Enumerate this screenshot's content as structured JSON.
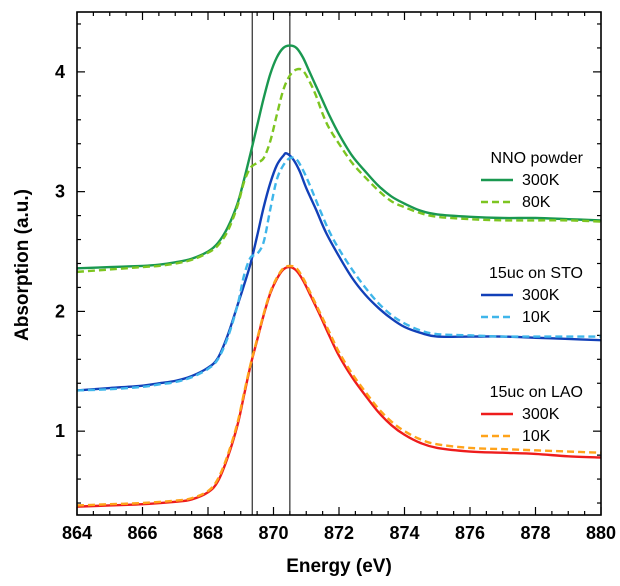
{
  "chart_data": {
    "type": "line",
    "xlabel": "Energy (eV)",
    "ylabel": "Absorption (a.u.)",
    "xlim": [
      864,
      880
    ],
    "ylim": [
      0.3,
      4.5
    ],
    "x_ticks": [
      864,
      866,
      868,
      870,
      872,
      874,
      876,
      878,
      880
    ],
    "y_ticks": [
      1,
      2,
      3,
      4
    ],
    "grid": false,
    "vertical_lines": [
      869.35,
      870.5
    ],
    "groups": [
      {
        "title": "NNO powder",
        "series": [
          {
            "name": "300K",
            "color": "#1a9850",
            "dash": "solid",
            "points": [
              [
                864,
                2.36
              ],
              [
                865,
                2.37
              ],
              [
                866,
                2.38
              ],
              [
                866.5,
                2.39
              ],
              [
                867,
                2.41
              ],
              [
                867.5,
                2.44
              ],
              [
                868,
                2.5
              ],
              [
                868.3,
                2.57
              ],
              [
                868.6,
                2.7
              ],
              [
                868.9,
                2.9
              ],
              [
                869.1,
                3.1
              ],
              [
                869.3,
                3.32
              ],
              [
                869.5,
                3.55
              ],
              [
                869.7,
                3.78
              ],
              [
                869.9,
                3.98
              ],
              [
                870.1,
                4.12
              ],
              [
                870.3,
                4.2
              ],
              [
                870.5,
                4.22
              ],
              [
                870.7,
                4.2
              ],
              [
                870.9,
                4.12
              ],
              [
                871.1,
                4.0
              ],
              [
                871.3,
                3.88
              ],
              [
                871.5,
                3.76
              ],
              [
                871.7,
                3.64
              ],
              [
                872,
                3.48
              ],
              [
                872.4,
                3.3
              ],
              [
                872.8,
                3.17
              ],
              [
                873.2,
                3.05
              ],
              [
                873.6,
                2.96
              ],
              [
                874,
                2.9
              ],
              [
                874.5,
                2.84
              ],
              [
                875,
                2.81
              ],
              [
                876,
                2.79
              ],
              [
                877,
                2.78
              ],
              [
                878,
                2.78
              ],
              [
                879,
                2.77
              ],
              [
                880,
                2.76
              ]
            ]
          },
          {
            "name": "80K",
            "color": "#7dc520",
            "dash": "dashed",
            "points": [
              [
                864,
                2.33
              ],
              [
                865,
                2.35
              ],
              [
                866,
                2.37
              ],
              [
                866.5,
                2.38
              ],
              [
                867,
                2.4
              ],
              [
                867.5,
                2.43
              ],
              [
                868,
                2.49
              ],
              [
                868.3,
                2.55
              ],
              [
                868.6,
                2.67
              ],
              [
                868.9,
                2.88
              ],
              [
                869.1,
                3.08
              ],
              [
                869.3,
                3.2
              ],
              [
                869.5,
                3.24
              ],
              [
                869.7,
                3.28
              ],
              [
                869.9,
                3.42
              ],
              [
                870.1,
                3.64
              ],
              [
                870.3,
                3.85
              ],
              [
                870.5,
                3.97
              ],
              [
                870.7,
                4.02
              ],
              [
                870.9,
                4.01
              ],
              [
                871.1,
                3.92
              ],
              [
                871.3,
                3.8
              ],
              [
                871.5,
                3.65
              ],
              [
                871.7,
                3.53
              ],
              [
                872,
                3.4
              ],
              [
                872.4,
                3.24
              ],
              [
                872.8,
                3.12
              ],
              [
                873.2,
                3.01
              ],
              [
                873.6,
                2.92
              ],
              [
                874,
                2.87
              ],
              [
                874.5,
                2.82
              ],
              [
                875,
                2.79
              ],
              [
                876,
                2.77
              ],
              [
                877,
                2.76
              ],
              [
                878,
                2.76
              ],
              [
                879,
                2.76
              ],
              [
                880,
                2.75
              ]
            ]
          }
        ]
      },
      {
        "title": "15uc on STO",
        "series": [
          {
            "name": "300K",
            "color": "#1240b8",
            "dash": "solid",
            "points": [
              [
                864,
                1.34
              ],
              [
                865,
                1.36
              ],
              [
                866,
                1.38
              ],
              [
                866.5,
                1.4
              ],
              [
                867,
                1.42
              ],
              [
                867.5,
                1.46
              ],
              [
                868,
                1.53
              ],
              [
                868.3,
                1.61
              ],
              [
                868.6,
                1.8
              ],
              [
                868.9,
                2.05
              ],
              [
                869.1,
                2.22
              ],
              [
                869.3,
                2.4
              ],
              [
                869.5,
                2.63
              ],
              [
                869.7,
                2.87
              ],
              [
                869.9,
                3.07
              ],
              [
                870.1,
                3.22
              ],
              [
                870.3,
                3.3
              ],
              [
                870.4,
                3.32
              ],
              [
                870.6,
                3.27
              ],
              [
                870.8,
                3.17
              ],
              [
                871,
                3.03
              ],
              [
                871.3,
                2.85
              ],
              [
                871.6,
                2.66
              ],
              [
                872,
                2.46
              ],
              [
                872.4,
                2.28
              ],
              [
                872.8,
                2.14
              ],
              [
                873.2,
                2.03
              ],
              [
                873.6,
                1.94
              ],
              [
                874,
                1.87
              ],
              [
                874.5,
                1.82
              ],
              [
                875,
                1.79
              ],
              [
                876,
                1.79
              ],
              [
                877,
                1.79
              ],
              [
                878,
                1.78
              ],
              [
                879,
                1.77
              ],
              [
                880,
                1.76
              ]
            ]
          },
          {
            "name": "10K",
            "color": "#3fb6ea",
            "dash": "dashed",
            "points": [
              [
                864,
                1.34
              ],
              [
                865,
                1.35
              ],
              [
                866,
                1.37
              ],
              [
                866.5,
                1.39
              ],
              [
                867,
                1.41
              ],
              [
                867.5,
                1.45
              ],
              [
                868,
                1.52
              ],
              [
                868.3,
                1.6
              ],
              [
                868.6,
                1.78
              ],
              [
                868.9,
                2.05
              ],
              [
                869.1,
                2.3
              ],
              [
                869.3,
                2.45
              ],
              [
                869.5,
                2.48
              ],
              [
                869.7,
                2.58
              ],
              [
                869.9,
                2.85
              ],
              [
                870.1,
                3.1
              ],
              [
                870.3,
                3.22
              ],
              [
                870.5,
                3.28
              ],
              [
                870.7,
                3.27
              ],
              [
                870.9,
                3.18
              ],
              [
                871.1,
                3.06
              ],
              [
                871.4,
                2.86
              ],
              [
                871.7,
                2.67
              ],
              [
                872,
                2.52
              ],
              [
                872.4,
                2.35
              ],
              [
                872.8,
                2.2
              ],
              [
                873.2,
                2.07
              ],
              [
                873.6,
                1.97
              ],
              [
                874,
                1.9
              ],
              [
                874.5,
                1.84
              ],
              [
                875,
                1.81
              ],
              [
                876,
                1.8
              ],
              [
                877,
                1.79
              ],
              [
                878,
                1.79
              ],
              [
                879,
                1.79
              ],
              [
                880,
                1.79
              ]
            ]
          }
        ]
      },
      {
        "title": "15uc on LAO",
        "series": [
          {
            "name": "300K",
            "color": "#ee1c1c",
            "dash": "solid",
            "points": [
              [
                864,
                0.37
              ],
              [
                865,
                0.38
              ],
              [
                866,
                0.39
              ],
              [
                867,
                0.41
              ],
              [
                867.5,
                0.43
              ],
              [
                868,
                0.49
              ],
              [
                868.3,
                0.58
              ],
              [
                868.6,
                0.78
              ],
              [
                868.9,
                1.05
              ],
              [
                869.1,
                1.3
              ],
              [
                869.3,
                1.55
              ],
              [
                869.5,
                1.76
              ],
              [
                869.7,
                1.97
              ],
              [
                869.9,
                2.15
              ],
              [
                870.1,
                2.27
              ],
              [
                870.3,
                2.35
              ],
              [
                870.5,
                2.37
              ],
              [
                870.7,
                2.34
              ],
              [
                870.9,
                2.26
              ],
              [
                871.1,
                2.15
              ],
              [
                871.4,
                1.98
              ],
              [
                871.7,
                1.8
              ],
              [
                872,
                1.63
              ],
              [
                872.4,
                1.45
              ],
              [
                872.8,
                1.3
              ],
              [
                873.2,
                1.16
              ],
              [
                873.6,
                1.05
              ],
              [
                874,
                0.97
              ],
              [
                874.5,
                0.9
              ],
              [
                875,
                0.86
              ],
              [
                876,
                0.83
              ],
              [
                877,
                0.82
              ],
              [
                878,
                0.81
              ],
              [
                879,
                0.79
              ],
              [
                880,
                0.78
              ]
            ]
          },
          {
            "name": "10K",
            "color": "#ffa31a",
            "dash": "dashed",
            "points": [
              [
                864,
                0.38
              ],
              [
                865,
                0.39
              ],
              [
                866,
                0.4
              ],
              [
                867,
                0.42
              ],
              [
                867.5,
                0.44
              ],
              [
                868,
                0.5
              ],
              [
                868.3,
                0.6
              ],
              [
                868.6,
                0.8
              ],
              [
                868.9,
                1.07
              ],
              [
                869.1,
                1.32
              ],
              [
                869.3,
                1.56
              ],
              [
                869.5,
                1.77
              ],
              [
                869.7,
                1.98
              ],
              [
                869.9,
                2.16
              ],
              [
                870.1,
                2.28
              ],
              [
                870.3,
                2.36
              ],
              [
                870.5,
                2.38
              ],
              [
                870.7,
                2.36
              ],
              [
                870.9,
                2.28
              ],
              [
                871.1,
                2.17
              ],
              [
                871.4,
                2.0
              ],
              [
                871.7,
                1.83
              ],
              [
                872,
                1.66
              ],
              [
                872.4,
                1.48
              ],
              [
                872.8,
                1.33
              ],
              [
                873.2,
                1.19
              ],
              [
                873.6,
                1.08
              ],
              [
                874,
                1.0
              ],
              [
                874.5,
                0.93
              ],
              [
                875,
                0.89
              ],
              [
                876,
                0.86
              ],
              [
                877,
                0.85
              ],
              [
                878,
                0.84
              ],
              [
                879,
                0.83
              ],
              [
                880,
                0.82
              ]
            ]
          }
        ]
      }
    ]
  }
}
